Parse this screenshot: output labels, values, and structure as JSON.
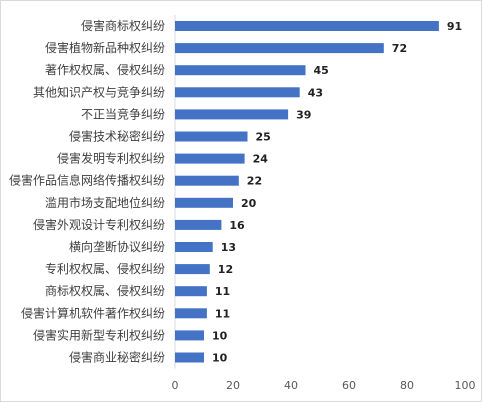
{
  "chart_data": {
    "type": "bar",
    "orientation": "horizontal",
    "categories": [
      "侵害商标权纠纷",
      "侵害植物新品种权纠纷",
      "著作权权属、侵权纠纷",
      "其他知识产权与竞争纠纷",
      "不正当竞争纠纷",
      "侵害技术秘密纠纷",
      "侵害发明专利权纠纷",
      "侵害作品信息网络传播权纠纷",
      "滥用市场支配地位纠纷",
      "侵害外观设计专利权纠纷",
      "横向垄断协议纠纷",
      "专利权权属、侵权纠纷",
      "商标权权属、侵权纠纷",
      "侵害计算机软件著作权纠纷",
      "侵害实用新型专利权纠纷",
      "侵害商业秘密纠纷"
    ],
    "values": [
      91,
      72,
      45,
      43,
      39,
      25,
      24,
      22,
      20,
      16,
      13,
      12,
      11,
      11,
      10,
      10
    ],
    "value_labels": [
      "91",
      "72",
      "45",
      "43",
      "39",
      "25",
      "24",
      "22",
      "20",
      "16",
      "13",
      "12",
      "11",
      "11",
      "10",
      "10"
    ],
    "xlim": [
      0,
      100
    ],
    "xticks": [
      "0",
      "20",
      "40",
      "60",
      "80",
      "100"
    ],
    "grid": false,
    "bar_color": "#4472C4",
    "title": "",
    "xlabel": "",
    "ylabel": ""
  }
}
